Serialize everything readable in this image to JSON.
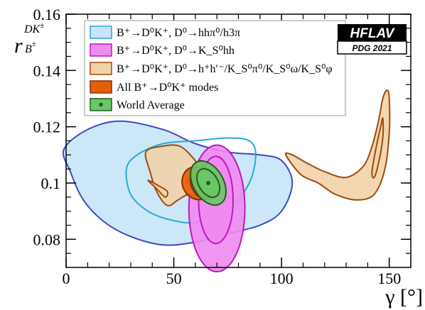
{
  "chart_data": {
    "type": "contour",
    "xlabel": "γ [°]",
    "ylabel": "r_B^{DK±}",
    "xlim": [
      0,
      160
    ],
    "ylim": [
      0.07,
      0.16
    ],
    "x_ticks": [
      "0",
      "50",
      "100",
      "150"
    ],
    "y_ticks": [
      "0.08",
      "0.1",
      "0.12",
      "0.14",
      "0.16"
    ],
    "badge": {
      "title": "HFLAV",
      "subtitle": "PDG 2021"
    },
    "legend_position": "top-left",
    "legend": [
      "B⁺→D⁰K⁺, D⁰→hhπ⁰/h3π",
      "B⁺→D⁰K⁺, D⁰→K_S⁰hh",
      "B⁺→D⁰K⁺, D⁰→h⁺h′⁻/K_S⁰π⁰/K_S⁰ω/K_S⁰φ",
      "All B⁺→D⁰K⁺ modes",
      "World Average"
    ],
    "series": [
      {
        "name": "B⁺→D⁰K⁺, D⁰→hhπ⁰/h3π",
        "fill": "#c9e6f7",
        "stroke_outer": "#3f48c9",
        "stroke_inner": "#2aa8d8",
        "contours": [
          {
            "level": "outer",
            "points": [
              [
                -1,
                0.112
              ],
              [
                10,
                0.119
              ],
              [
                25,
                0.122
              ],
              [
                45,
                0.119
              ],
              [
                60,
                0.114
              ],
              [
                75,
                0.111
              ],
              [
                90,
                0.11
              ],
              [
                100,
                0.108
              ],
              [
                105,
                0.1
              ],
              [
                100,
                0.09
              ],
              [
                90,
                0.085
              ],
              [
                75,
                0.082
              ],
              [
                60,
                0.079
              ],
              [
                45,
                0.078
              ],
              [
                30,
                0.081
              ],
              [
                18,
                0.086
              ],
              [
                8,
                0.094
              ],
              [
                2,
                0.104
              ],
              [
                -1,
                0.112
              ]
            ]
          },
          {
            "level": "inner",
            "points": [
              [
                28,
                0.105
              ],
              [
                33,
                0.11
              ],
              [
                45,
                0.114
              ],
              [
                60,
                0.115
              ],
              [
                75,
                0.116
              ],
              [
                85,
                0.115
              ],
              [
                88,
                0.11
              ],
              [
                85,
                0.1
              ],
              [
                75,
                0.09
              ],
              [
                60,
                0.086
              ],
              [
                48,
                0.087
              ],
              [
                38,
                0.09
              ],
              [
                30,
                0.096
              ],
              [
                28,
                0.105
              ]
            ]
          }
        ]
      },
      {
        "name": "B⁺→D⁰K⁺, D⁰→K_S⁰hh",
        "fill": "#ef8aef",
        "stroke_outer": "#c017c0",
        "contours": [
          {
            "level": "outer",
            "center": [
              70,
              0.091
            ],
            "rx": 13,
            "ry": 0.0225
          },
          {
            "level": "inner",
            "center": [
              69.5,
              0.094
            ],
            "rx": 8,
            "ry": 0.0155
          }
        ]
      },
      {
        "name": "B⁺→D⁰K⁺, D⁰→h⁺h′⁻/K_S⁰π⁰/K_S⁰ω/K_S⁰φ",
        "fill": "#f1d3a8",
        "stroke_outer": "#a2480e",
        "contours": [
          {
            "level": "outer",
            "points": [
              [
                37,
                0.111
              ],
              [
                44,
                0.113
              ],
              [
                53,
                0.113
              ],
              [
                61,
                0.107
              ],
              [
                66,
                0.101
              ],
              [
                67,
                0.096
              ],
              [
                63,
                0.095
              ],
              [
                57,
                0.096
              ],
              [
                52,
                0.094
              ],
              [
                47,
                0.092
              ],
              [
                42,
                0.097
              ],
              [
                39,
                0.104
              ],
              [
                37,
                0.111
              ]
            ]
          },
          {
            "level": "inner",
            "points": [
              [
                38,
                0.101
              ],
              [
                43,
                0.099
              ],
              [
                47,
                0.097
              ],
              [
                46,
                0.095
              ],
              [
                42,
                0.098
              ],
              [
                38,
                0.101
              ]
            ]
          },
          {
            "level": "inner",
            "points": [
              [
                56,
                0.101
              ],
              [
                62,
                0.108
              ],
              [
                63,
                0.104
              ],
              [
                58,
                0.1
              ],
              [
                56,
                0.101
              ]
            ]
          },
          {
            "level": "outer",
            "points": [
              [
                102,
                0.11
              ],
              [
                105,
                0.11
              ],
              [
                112,
                0.107
              ],
              [
                120,
                0.104
              ],
              [
                130,
                0.102
              ],
              [
                138,
                0.106
              ],
              [
                142,
                0.113
              ],
              [
                145,
                0.122
              ],
              [
                147,
                0.13
              ],
              [
                149,
                0.133
              ],
              [
                150,
                0.13
              ],
              [
                150,
                0.118
              ],
              [
                148,
                0.105
              ],
              [
                143,
                0.096
              ],
              [
                135,
                0.094
              ],
              [
                125,
                0.096
              ],
              [
                117,
                0.1
              ],
              [
                109,
                0.103
              ],
              [
                102,
                0.11
              ]
            ]
          },
          {
            "level": "inner",
            "points": [
              [
                142,
                0.104
              ],
              [
                144,
                0.113
              ],
              [
                146,
                0.12
              ],
              [
                147,
                0.123
              ],
              [
                147,
                0.116
              ],
              [
                145,
                0.107
              ],
              [
                143,
                0.102
              ],
              [
                142,
                0.104
              ]
            ]
          }
        ]
      },
      {
        "name": "All B⁺→D⁰K⁺ modes",
        "fill": "#e85e06",
        "stroke_outer": "#8a2e00",
        "contours": [
          {
            "level": "outer",
            "center": [
              61,
              0.1
            ],
            "rx": 7,
            "ry": 0.006
          },
          {
            "level": "outer",
            "center": [
              64,
              0.1
            ],
            "rx": 6,
            "ry": 0.006
          }
        ]
      },
      {
        "name": "World Average",
        "fill": "#6ac766",
        "stroke_outer": "#1d5f1f",
        "central_value": {
          "x": 66,
          "y": 0.1
        },
        "contours": [
          {
            "level": "outer",
            "center": [
              66,
              0.1
            ],
            "rx": 7,
            "ry": 0.0085
          },
          {
            "level": "inner",
            "center": [
              66,
              0.1
            ],
            "rx": 4.5,
            "ry": 0.0055
          }
        ]
      }
    ]
  }
}
